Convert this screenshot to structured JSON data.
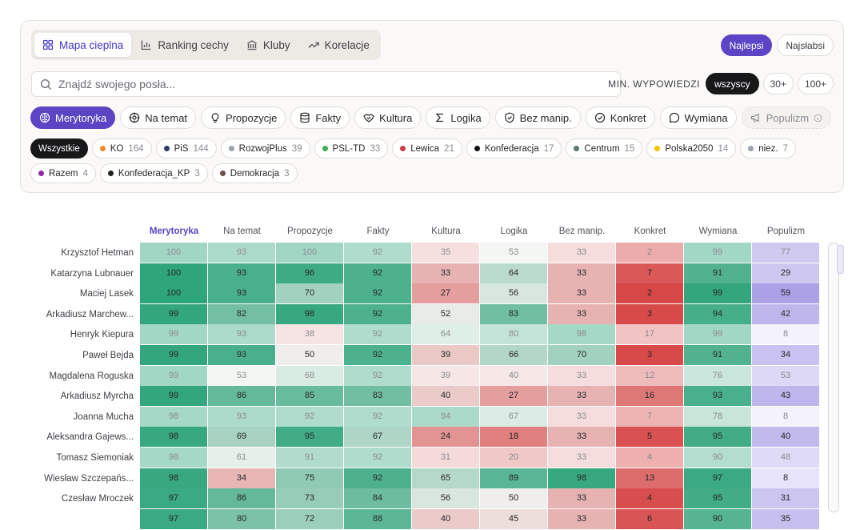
{
  "tabs": [
    {
      "label": "Mapa cieplna",
      "icon": "grid-icon",
      "active": true
    },
    {
      "label": "Ranking cechy",
      "icon": "bar-chart-icon",
      "active": false
    },
    {
      "label": "Kluby",
      "icon": "building-icon",
      "active": false
    },
    {
      "label": "Korelacje",
      "icon": "trend-icon",
      "active": false
    }
  ],
  "toggle": {
    "best": "Najlepsi",
    "worst": "Najsłabsi"
  },
  "search": {
    "placeholder": "Znajdź swojego posła..."
  },
  "min_filter": {
    "label": "MIN. WYPOWIEDZI",
    "options": [
      "wszyscy",
      "30+",
      "100+"
    ]
  },
  "metrics": [
    {
      "label": "Merytoryka",
      "icon": "brain-icon"
    },
    {
      "label": "Na temat",
      "icon": "target-icon"
    },
    {
      "label": "Propozycje",
      "icon": "lightbulb-icon"
    },
    {
      "label": "Fakty",
      "icon": "database-icon"
    },
    {
      "label": "Kultura",
      "icon": "handshake-icon"
    },
    {
      "label": "Logika",
      "icon": "sigma-icon"
    },
    {
      "label": "Bez manip.",
      "icon": "shield-icon"
    },
    {
      "label": "Konkret",
      "icon": "check-circle-icon"
    },
    {
      "label": "Wymiana",
      "icon": "chat-icon"
    },
    {
      "label": "Populizm",
      "icon": "megaphone-icon"
    }
  ],
  "parties": [
    {
      "name": "Wszystkie",
      "count": "",
      "color": ""
    },
    {
      "name": "KO",
      "count": "164",
      "color": "#f28c28"
    },
    {
      "name": "PiS",
      "count": "144",
      "color": "#2f3e66"
    },
    {
      "name": "RozwojPlus",
      "count": "39",
      "color": "#9ca3af"
    },
    {
      "name": "PSL-TD",
      "count": "33",
      "color": "#3fae4f"
    },
    {
      "name": "Lewica",
      "count": "21",
      "color": "#d13c4a"
    },
    {
      "name": "Konfederacja",
      "count": "17",
      "color": "#111111"
    },
    {
      "name": "Centrum",
      "count": "15",
      "color": "#5a7a6c"
    },
    {
      "name": "Polska2050",
      "count": "14",
      "color": "#f5c400"
    },
    {
      "name": "niez.",
      "count": "7",
      "color": "#9ca3af"
    },
    {
      "name": "Razem",
      "count": "4",
      "color": "#8e2aa3"
    },
    {
      "name": "Konfederacja_KP",
      "count": "3",
      "color": "#222222"
    },
    {
      "name": "Demokracja",
      "count": "3",
      "color": "#6b4f4a"
    }
  ],
  "heatmap": {
    "columns": [
      "Merytoryka",
      "Na temat",
      "Propozycje",
      "Fakty",
      "Kultura",
      "Logika",
      "Bez manip.",
      "Konkret",
      "Wymiana",
      "Populizm"
    ],
    "rows": [
      {
        "name": "Krzysztof Hetman",
        "dim": true,
        "values": [
          100,
          93,
          100,
          92,
          35,
          53,
          33,
          2,
          99,
          77
        ]
      },
      {
        "name": "Katarzyna Lubnauer",
        "dim": false,
        "values": [
          100,
          93,
          96,
          92,
          33,
          64,
          33,
          7,
          91,
          29
        ]
      },
      {
        "name": "Maciej Lasek",
        "dim": false,
        "values": [
          100,
          93,
          70,
          92,
          27,
          56,
          33,
          2,
          99,
          59
        ]
      },
      {
        "name": "Arkadiusz Marchew...",
        "dim": false,
        "values": [
          99,
          82,
          98,
          92,
          52,
          83,
          33,
          3,
          94,
          42
        ]
      },
      {
        "name": "Henryk Kiepura",
        "dim": true,
        "values": [
          99,
          93,
          38,
          92,
          64,
          80,
          98,
          17,
          99,
          8
        ]
      },
      {
        "name": "Paweł Bejda",
        "dim": false,
        "values": [
          99,
          93,
          50,
          92,
          39,
          66,
          70,
          3,
          91,
          34
        ]
      },
      {
        "name": "Magdalena Roguska",
        "dim": true,
        "values": [
          99,
          53,
          68,
          92,
          39,
          40,
          33,
          12,
          76,
          53
        ]
      },
      {
        "name": "Arkadiusz Myrcha",
        "dim": false,
        "values": [
          99,
          86,
          85,
          83,
          40,
          27,
          33,
          16,
          93,
          43
        ]
      },
      {
        "name": "Joanna Mucha",
        "dim": true,
        "values": [
          98,
          93,
          92,
          92,
          94,
          67,
          33,
          7,
          78,
          8
        ]
      },
      {
        "name": "Aleksandra Gajews...",
        "dim": false,
        "values": [
          98,
          69,
          95,
          67,
          24,
          18,
          33,
          5,
          95,
          40
        ]
      },
      {
        "name": "Tomasz Siemoniak",
        "dim": true,
        "values": [
          98,
          61,
          91,
          92,
          31,
          20,
          33,
          4,
          90,
          48
        ]
      },
      {
        "name": "Wiesław Szczepańs...",
        "dim": false,
        "values": [
          98,
          34,
          75,
          92,
          65,
          89,
          98,
          13,
          97,
          8
        ]
      },
      {
        "name": "Czesław Mroczek",
        "dim": false,
        "values": [
          97,
          86,
          73,
          84,
          56,
          50,
          33,
          4,
          95,
          31
        ]
      },
      {
        "name": "",
        "dim": false,
        "values": [
          97,
          80,
          72,
          88,
          40,
          45,
          33,
          6,
          90,
          35
        ]
      }
    ]
  },
  "colors": {
    "accent": "#5b45c4",
    "good": "#2fa57c",
    "bad": "#d94a4a",
    "populism": "#7c6bd6"
  }
}
